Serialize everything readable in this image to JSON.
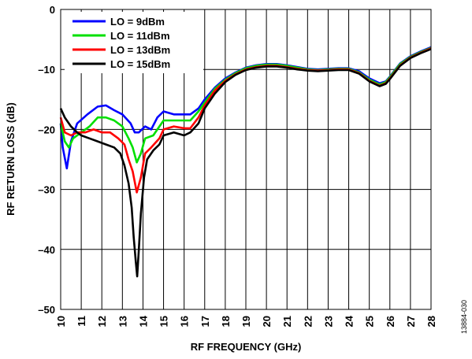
{
  "chart_data": {
    "type": "line",
    "title": "",
    "xlabel": "RF FREQUENCY (GHz)",
    "ylabel": "RF RETURN LOSS (dB)",
    "xlim": [
      10,
      28
    ],
    "ylim": [
      -50,
      0
    ],
    "x_ticks": [
      "10",
      "11",
      "12",
      "13",
      "14",
      "15",
      "16",
      "17",
      "18",
      "19",
      "20",
      "21",
      "22",
      "23",
      "24",
      "25",
      "26",
      "27",
      "28"
    ],
    "y_ticks": [
      "0",
      "–10",
      "–20",
      "–30",
      "–40",
      "–50"
    ],
    "grid": true,
    "legend_position": "top-left",
    "figure_id": "13884-030",
    "series": [
      {
        "name": "LO = 9dBm",
        "color": "#0000ff",
        "points": [
          [
            10,
            -19
          ],
          [
            10.1,
            -23
          ],
          [
            10.3,
            -26.5
          ],
          [
            10.5,
            -22
          ],
          [
            10.8,
            -19
          ],
          [
            11.3,
            -17.5
          ],
          [
            11.8,
            -16.2
          ],
          [
            12.2,
            -16
          ],
          [
            12.6,
            -16.8
          ],
          [
            13,
            -17.5
          ],
          [
            13.4,
            -19
          ],
          [
            13.6,
            -20.5
          ],
          [
            13.8,
            -20.5
          ],
          [
            14.1,
            -19.5
          ],
          [
            14.4,
            -20
          ],
          [
            14.7,
            -18
          ],
          [
            15,
            -17
          ],
          [
            15.5,
            -17.5
          ],
          [
            16,
            -17.5
          ],
          [
            16.3,
            -17.5
          ],
          [
            16.7,
            -16.5
          ],
          [
            17,
            -15
          ],
          [
            17.5,
            -13
          ],
          [
            18,
            -11.5
          ],
          [
            18.5,
            -10.5
          ],
          [
            19,
            -9.7
          ],
          [
            19.5,
            -9.3
          ],
          [
            20,
            -9.1
          ],
          [
            20.5,
            -9.1
          ],
          [
            21,
            -9.3
          ],
          [
            21.5,
            -9.6
          ],
          [
            22,
            -9.9
          ],
          [
            22.5,
            -10
          ],
          [
            23,
            -9.9
          ],
          [
            23.5,
            -9.8
          ],
          [
            24,
            -9.8
          ],
          [
            24.5,
            -10.3
          ],
          [
            25,
            -11.5
          ],
          [
            25.5,
            -12.3
          ],
          [
            25.8,
            -12
          ],
          [
            26,
            -11.2
          ],
          [
            26.5,
            -9
          ],
          [
            27,
            -7.8
          ],
          [
            27.5,
            -7
          ],
          [
            28,
            -6.3
          ]
        ]
      },
      {
        "name": "LO = 11dBm",
        "color": "#00e000",
        "points": [
          [
            10,
            -19
          ],
          [
            10.2,
            -22
          ],
          [
            10.4,
            -23
          ],
          [
            10.6,
            -21.5
          ],
          [
            11,
            -20.5
          ],
          [
            11.4,
            -19.5
          ],
          [
            11.8,
            -18
          ],
          [
            12.2,
            -18
          ],
          [
            12.6,
            -18.5
          ],
          [
            13,
            -19.5
          ],
          [
            13.3,
            -21.5
          ],
          [
            13.5,
            -23
          ],
          [
            13.7,
            -25.5
          ],
          [
            13.9,
            -24
          ],
          [
            14.1,
            -21.5
          ],
          [
            14.5,
            -21
          ],
          [
            14.8,
            -19.5
          ],
          [
            15,
            -18.5
          ],
          [
            15.5,
            -18.5
          ],
          [
            16,
            -18.5
          ],
          [
            16.3,
            -18.5
          ],
          [
            16.7,
            -17
          ],
          [
            17,
            -15.5
          ],
          [
            17.5,
            -13.2
          ],
          [
            18,
            -11.7
          ],
          [
            18.5,
            -10.6
          ],
          [
            19,
            -9.8
          ],
          [
            19.5,
            -9.4
          ],
          [
            20,
            -9.2
          ],
          [
            20.5,
            -9.2
          ],
          [
            21,
            -9.4
          ],
          [
            21.5,
            -9.7
          ],
          [
            22,
            -10
          ],
          [
            22.5,
            -10.1
          ],
          [
            23,
            -10
          ],
          [
            23.5,
            -9.9
          ],
          [
            24,
            -9.9
          ],
          [
            24.5,
            -10.5
          ],
          [
            25,
            -11.7
          ],
          [
            25.5,
            -12.5
          ],
          [
            25.8,
            -12.1
          ],
          [
            26,
            -11.3
          ],
          [
            26.5,
            -9.1
          ],
          [
            27,
            -7.9
          ],
          [
            27.5,
            -7.1
          ],
          [
            28,
            -6.4
          ]
        ]
      },
      {
        "name": "LO = 13dBm",
        "color": "#ff0000",
        "points": [
          [
            10,
            -18
          ],
          [
            10.2,
            -20.5
          ],
          [
            10.5,
            -21
          ],
          [
            10.8,
            -20.5
          ],
          [
            11.2,
            -20.5
          ],
          [
            11.6,
            -20
          ],
          [
            12,
            -20.5
          ],
          [
            12.4,
            -20.5
          ],
          [
            12.8,
            -21.5
          ],
          [
            13.1,
            -22.5
          ],
          [
            13.3,
            -25
          ],
          [
            13.5,
            -27
          ],
          [
            13.7,
            -30.5
          ],
          [
            13.9,
            -28
          ],
          [
            14.1,
            -24
          ],
          [
            14.4,
            -23
          ],
          [
            14.8,
            -21.5
          ],
          [
            15,
            -20
          ],
          [
            15.5,
            -19.5
          ],
          [
            16,
            -19.8
          ],
          [
            16.3,
            -19.8
          ],
          [
            16.7,
            -18
          ],
          [
            17,
            -16
          ],
          [
            17.5,
            -13.5
          ],
          [
            18,
            -11.9
          ],
          [
            18.5,
            -10.8
          ],
          [
            19,
            -10
          ],
          [
            19.5,
            -9.6
          ],
          [
            20,
            -9.4
          ],
          [
            20.5,
            -9.4
          ],
          [
            21,
            -9.6
          ],
          [
            21.5,
            -9.9
          ],
          [
            22,
            -10.1
          ],
          [
            22.5,
            -10.2
          ],
          [
            23,
            -10.1
          ],
          [
            23.5,
            -10
          ],
          [
            24,
            -10
          ],
          [
            24.5,
            -10.6
          ],
          [
            25,
            -11.9
          ],
          [
            25.5,
            -12.7
          ],
          [
            25.8,
            -12.3
          ],
          [
            26,
            -11.5
          ],
          [
            26.5,
            -9.3
          ],
          [
            27,
            -8
          ],
          [
            27.5,
            -7.2
          ],
          [
            28,
            -6.5
          ]
        ]
      },
      {
        "name": "LO = 15dBm",
        "color": "#000000",
        "points": [
          [
            10,
            -16.5
          ],
          [
            10.2,
            -18
          ],
          [
            10.5,
            -19.5
          ],
          [
            10.8,
            -20.5
          ],
          [
            11,
            -21
          ],
          [
            11.4,
            -21.5
          ],
          [
            11.8,
            -22
          ],
          [
            12.2,
            -22.5
          ],
          [
            12.6,
            -23
          ],
          [
            12.9,
            -24
          ],
          [
            13.1,
            -26
          ],
          [
            13.3,
            -29
          ],
          [
            13.45,
            -33
          ],
          [
            13.55,
            -38
          ],
          [
            13.65,
            -42
          ],
          [
            13.72,
            -44.5
          ],
          [
            13.8,
            -40
          ],
          [
            13.9,
            -34
          ],
          [
            14.05,
            -28
          ],
          [
            14.2,
            -25
          ],
          [
            14.5,
            -23.5
          ],
          [
            14.8,
            -22.5
          ],
          [
            15,
            -21
          ],
          [
            15.5,
            -20.5
          ],
          [
            16,
            -21
          ],
          [
            16.3,
            -20.5
          ],
          [
            16.7,
            -19
          ],
          [
            17,
            -16.5
          ],
          [
            17.5,
            -14
          ],
          [
            18,
            -12.1
          ],
          [
            18.5,
            -10.9
          ],
          [
            19,
            -10.1
          ],
          [
            19.5,
            -9.7
          ],
          [
            20,
            -9.5
          ],
          [
            20.5,
            -9.5
          ],
          [
            21,
            -9.7
          ],
          [
            21.5,
            -10
          ],
          [
            22,
            -10.2
          ],
          [
            22.5,
            -10.3
          ],
          [
            23,
            -10.2
          ],
          [
            23.5,
            -10.1
          ],
          [
            24,
            -10.1
          ],
          [
            24.5,
            -10.7
          ],
          [
            25,
            -12
          ],
          [
            25.5,
            -12.8
          ],
          [
            25.8,
            -12.4
          ],
          [
            26,
            -11.6
          ],
          [
            26.5,
            -9.4
          ],
          [
            27,
            -8.1
          ],
          [
            27.5,
            -7.3
          ],
          [
            28,
            -6.6
          ]
        ]
      }
    ]
  }
}
